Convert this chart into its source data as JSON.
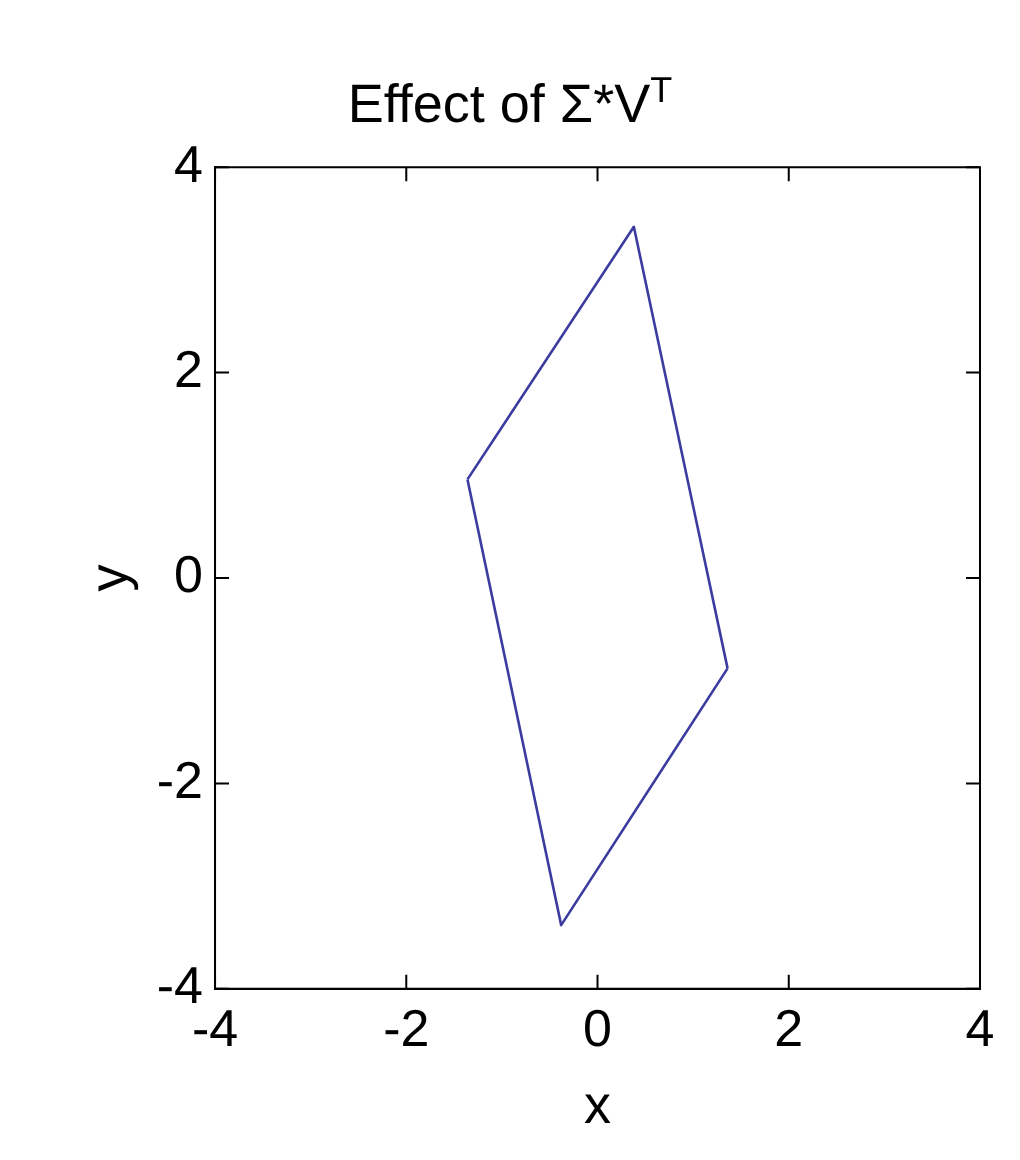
{
  "chart_data": {
    "type": "line",
    "title": "Effect of Σ*V$^{T}$",
    "xlabel": "x",
    "ylabel": "y",
    "series": [
      {
        "color": "#3c3ca0",
        "x": [
          -1.36,
          0.38,
          1.36
        ],
        "values": [
          0.96,
          3.42,
          -0.88
        ]
      },
      {
        "color": "#3c3ca0",
        "x": [
          -1.36,
          -0.38,
          1.36
        ],
        "values": [
          0.96,
          -3.38,
          -0.88
        ]
      }
    ],
    "xlim": [
      -4,
      4
    ],
    "xticks": [
      -4,
      -2,
      0,
      2,
      4
    ],
    "ylim": [
      -4,
      4
    ],
    "yticks": [
      -4,
      -2,
      0,
      2,
      4
    ],
    "grid": false,
    "legend": false,
    "marker": "none",
    "line_style": "solid"
  }
}
